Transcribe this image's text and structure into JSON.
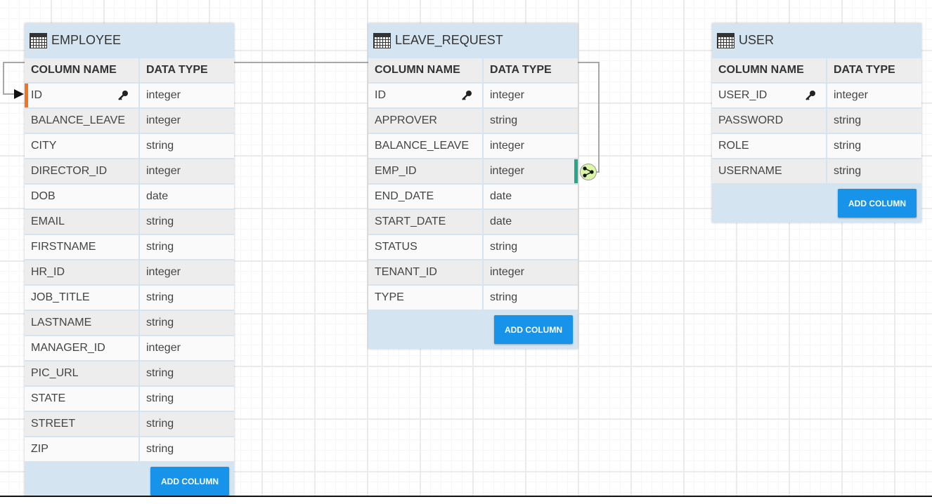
{
  "tables": [
    {
      "name": "EMPLOYEE",
      "header": {
        "col1": "COLUMN NAME",
        "col2": "DATA TYPE"
      },
      "add_label": "ADD COLUMN",
      "rows": [
        [
          "ID",
          "integer",
          true
        ],
        [
          "BALANCE_LEAVE",
          "integer"
        ],
        [
          "CITY",
          "string"
        ],
        [
          "DIRECTOR_ID",
          "integer"
        ],
        [
          "DOB",
          "date"
        ],
        [
          "EMAIL",
          "string"
        ],
        [
          "FIRSTNAME",
          "string"
        ],
        [
          "HR_ID",
          "integer"
        ],
        [
          "JOB_TITLE",
          "string"
        ],
        [
          "LASTNAME",
          "string"
        ],
        [
          "MANAGER_ID",
          "integer"
        ],
        [
          "PIC_URL",
          "string"
        ],
        [
          "STATE",
          "string"
        ],
        [
          "STREET",
          "string"
        ],
        [
          "ZIP",
          "string"
        ]
      ]
    },
    {
      "name": "LEAVE_REQUEST",
      "header": {
        "col1": "COLUMN NAME",
        "col2": "DATA TYPE"
      },
      "add_label": "ADD COLUMN",
      "rows": [
        [
          "ID",
          "integer",
          true
        ],
        [
          "APPROVER",
          "string"
        ],
        [
          "BALANCE_LEAVE",
          "integer"
        ],
        [
          "EMP_ID",
          "integer"
        ],
        [
          "END_DATE",
          "date"
        ],
        [
          "START_DATE",
          "date"
        ],
        [
          "STATUS",
          "string"
        ],
        [
          "TENANT_ID",
          "integer"
        ],
        [
          "TYPE",
          "string"
        ]
      ]
    },
    {
      "name": "USER",
      "header": {
        "col1": "COLUMN NAME",
        "col2": "DATA TYPE"
      },
      "add_label": "ADD COLUMN",
      "rows": [
        [
          "USER_ID",
          "integer",
          true
        ],
        [
          "PASSWORD",
          "string"
        ],
        [
          "ROLE",
          "string"
        ],
        [
          "USERNAME",
          "string"
        ]
      ]
    }
  ],
  "relation": {
    "from": "LEAVE_REQUEST.EMP_ID",
    "to": "EMPLOYEE.ID"
  },
  "colors": {
    "header_bg": "#d4e5f1",
    "button": "#1793ea",
    "primary_key_marker": "#f47321",
    "foreign_key_marker": "#22a88a",
    "link_node": "#d9f7a4"
  }
}
